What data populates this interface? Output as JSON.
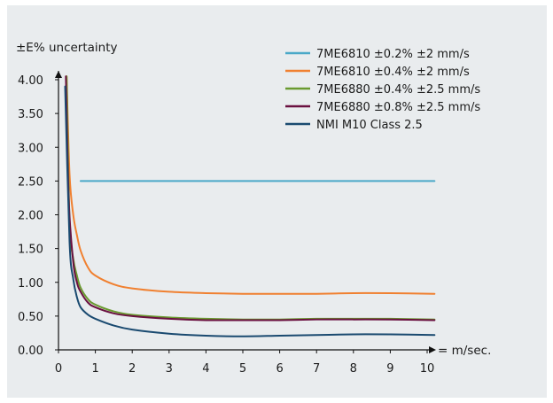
{
  "chart_data": {
    "type": "line",
    "ylabel": "±E% uncertainty",
    "xlabel": "= m/sec.",
    "xlim": [
      0,
      10
    ],
    "ylim": [
      0,
      4
    ],
    "x_ticks": [
      "0",
      "1",
      "2",
      "3",
      "4",
      "5",
      "6",
      "7",
      "8",
      "9",
      "10"
    ],
    "y_ticks": [
      "0.00",
      "0.50",
      "1.00",
      "1.50",
      "2.00",
      "2.50",
      "3.00",
      "3.50",
      "4.00"
    ],
    "grid": false,
    "legend_position": "top-right",
    "series": [
      {
        "name": "7ME6810 ±0.2% ±2 mm/s",
        "color": "#4aa8c8",
        "points": [
          [
            0.6,
            2.5
          ],
          [
            10.2,
            2.5
          ]
        ]
      },
      {
        "name": "7ME6810 ±0.4% ±2 mm/s",
        "color": "#f08030",
        "points": [
          [
            0.22,
            4.05
          ],
          [
            0.3,
            2.6
          ],
          [
            0.4,
            2.0
          ],
          [
            0.5,
            1.7
          ],
          [
            0.6,
            1.47
          ],
          [
            0.8,
            1.22
          ],
          [
            1,
            1.1
          ],
          [
            1.5,
            0.97
          ],
          [
            2,
            0.91
          ],
          [
            3,
            0.86
          ],
          [
            4,
            0.84
          ],
          [
            5,
            0.83
          ],
          [
            6,
            0.83
          ],
          [
            7,
            0.83
          ],
          [
            8,
            0.84
          ],
          [
            9,
            0.84
          ],
          [
            10.2,
            0.83
          ]
        ]
      },
      {
        "name": "7ME6880 ±0.4% ±2.5 mm/s",
        "color": "#6a9a30",
        "points": [
          [
            0.22,
            4.05
          ],
          [
            0.3,
            1.9
          ],
          [
            0.4,
            1.35
          ],
          [
            0.5,
            1.1
          ],
          [
            0.6,
            0.92
          ],
          [
            0.8,
            0.75
          ],
          [
            1,
            0.67
          ],
          [
            1.5,
            0.57
          ],
          [
            2,
            0.52
          ],
          [
            3,
            0.48
          ],
          [
            4,
            0.46
          ],
          [
            5,
            0.45
          ],
          [
            6,
            0.45
          ],
          [
            7,
            0.46
          ],
          [
            8,
            0.46
          ],
          [
            9,
            0.46
          ],
          [
            10.2,
            0.45
          ]
        ]
      },
      {
        "name": "7ME6880 ±0.8% ±2.5 mm/s",
        "color": "#6a1040",
        "points": [
          [
            0.2,
            4.05
          ],
          [
            0.28,
            2.2
          ],
          [
            0.4,
            1.3
          ],
          [
            0.5,
            1.0
          ],
          [
            0.6,
            0.86
          ],
          [
            0.8,
            0.7
          ],
          [
            1,
            0.63
          ],
          [
            1.5,
            0.54
          ],
          [
            2,
            0.5
          ],
          [
            3,
            0.46
          ],
          [
            4,
            0.44
          ],
          [
            5,
            0.44
          ],
          [
            6,
            0.44
          ],
          [
            7,
            0.45
          ],
          [
            8,
            0.45
          ],
          [
            9,
            0.45
          ],
          [
            10.2,
            0.44
          ]
        ]
      },
      {
        "name": "NMI M10 Class 2.5",
        "color": "#1a4a70",
        "points": [
          [
            0.18,
            3.9
          ],
          [
            0.3,
            1.6
          ],
          [
            0.4,
            1.05
          ],
          [
            0.5,
            0.78
          ],
          [
            0.6,
            0.63
          ],
          [
            0.8,
            0.52
          ],
          [
            1,
            0.46
          ],
          [
            1.5,
            0.36
          ],
          [
            2,
            0.3
          ],
          [
            3,
            0.24
          ],
          [
            4,
            0.21
          ],
          [
            5,
            0.2
          ],
          [
            6,
            0.21
          ],
          [
            7,
            0.22
          ],
          [
            8,
            0.23
          ],
          [
            9,
            0.23
          ],
          [
            10.2,
            0.22
          ]
        ]
      }
    ]
  }
}
